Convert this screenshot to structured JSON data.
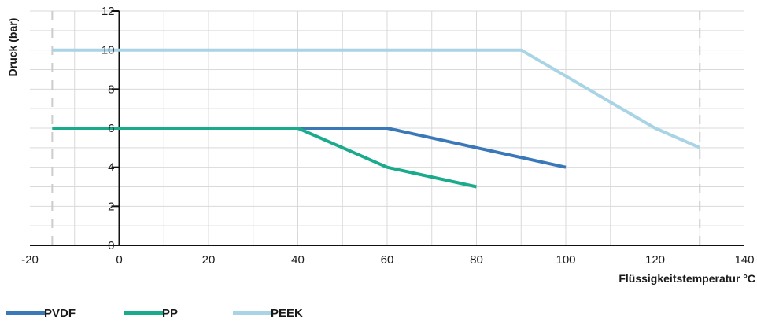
{
  "chart_data": {
    "type": "line",
    "xlabel": "Flüssigkeitstemperatur °C",
    "ylabel": "Druck (bar)",
    "xlim": [
      -20,
      140
    ],
    "ylim": [
      0,
      12
    ],
    "xticks": [
      -20,
      0,
      20,
      40,
      60,
      80,
      100,
      120,
      140
    ],
    "yticks": [
      0,
      2,
      4,
      6,
      8,
      10,
      12
    ],
    "x_tick_labels": [
      "-20",
      "0",
      "20",
      "40",
      "60",
      "80",
      "100",
      "120",
      "140"
    ],
    "y_tick_labels": [
      "0",
      "2",
      "4",
      "6",
      "8",
      "10",
      "12"
    ],
    "grid": true,
    "legend_position": "bottom-left",
    "series": [
      {
        "name": "PVDF",
        "color": "#3a78b8",
        "points": [
          [
            -15,
            6
          ],
          [
            60,
            6
          ],
          [
            100,
            4
          ]
        ]
      },
      {
        "name": "PP",
        "color": "#1aaa8c",
        "points": [
          [
            -15,
            6
          ],
          [
            40,
            6
          ],
          [
            60,
            4
          ],
          [
            80,
            3
          ]
        ]
      },
      {
        "name": "PEEK",
        "color": "#a9d4e6",
        "points": [
          [
            -15,
            10
          ],
          [
            90,
            10
          ],
          [
            120,
            6
          ],
          [
            130,
            5
          ]
        ]
      }
    ],
    "reference_lines_x": [
      -15,
      130
    ],
    "colors": {
      "grid": "#d9d9d9",
      "axis": "#111111",
      "dashed": "#cccccc"
    }
  }
}
